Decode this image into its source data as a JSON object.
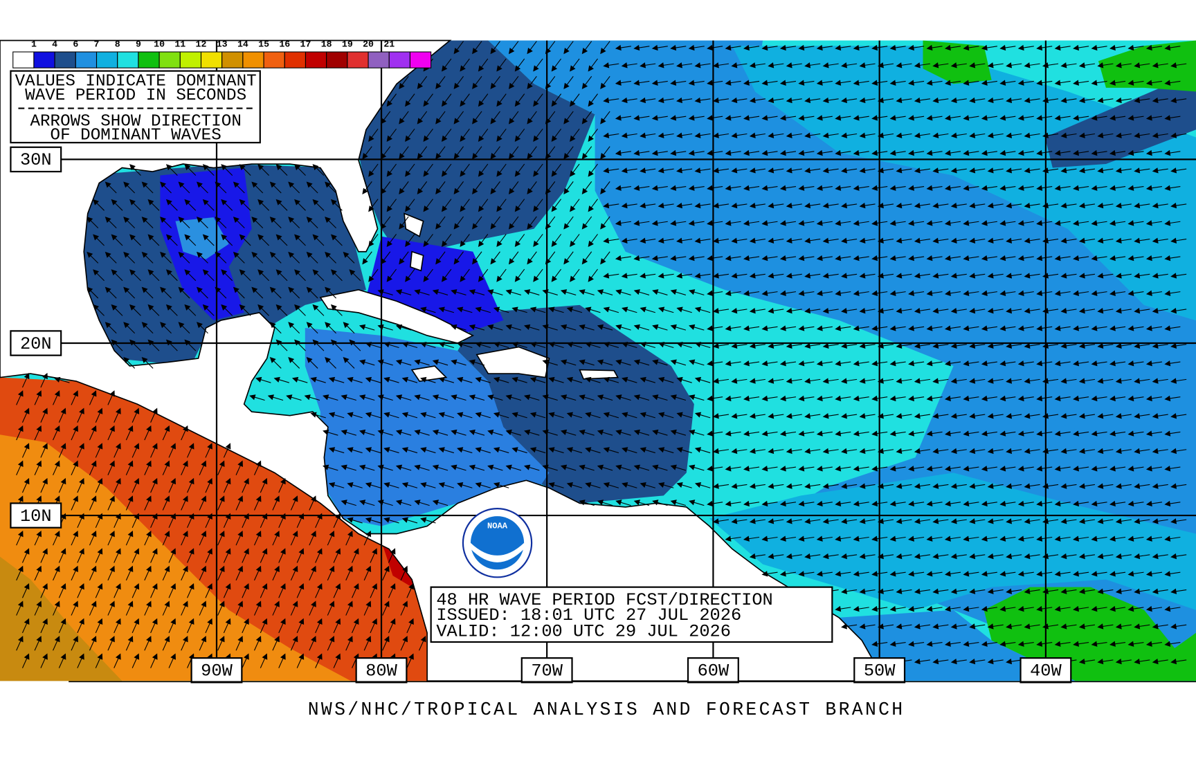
{
  "legend": {
    "labels": [
      "1",
      "4",
      "6",
      "7",
      "8",
      "9",
      "10",
      "11",
      "12",
      "13",
      "14",
      "15",
      "16",
      "17",
      "18",
      "19",
      "20",
      "21"
    ]
  },
  "key_box": {
    "line1": "VALUES INDICATE DOMINANT",
    "line2": "WAVE PERIOD IN SECONDS",
    "line3": "ARROWS SHOW DIRECTION",
    "line4": "OF DOMINANT WAVES"
  },
  "latitude_labels": [
    "30N",
    "20N",
    "10N"
  ],
  "longitude_labels": [
    "90W",
    "80W",
    "70W",
    "60W",
    "50W",
    "40W"
  ],
  "forecast_box": {
    "line1": "48 HR WAVE PERIOD FCST/DIRECTION",
    "line2": "ISSUED:  18:01 UTC 27 JUL 2026",
    "line3": "VALID:   12:00 UTC 29 JUL 2026"
  },
  "logo": "NOAA",
  "footer": "NWS/NHC/TROPICAL ANALYSIS AND FORECAST BRANCH"
}
